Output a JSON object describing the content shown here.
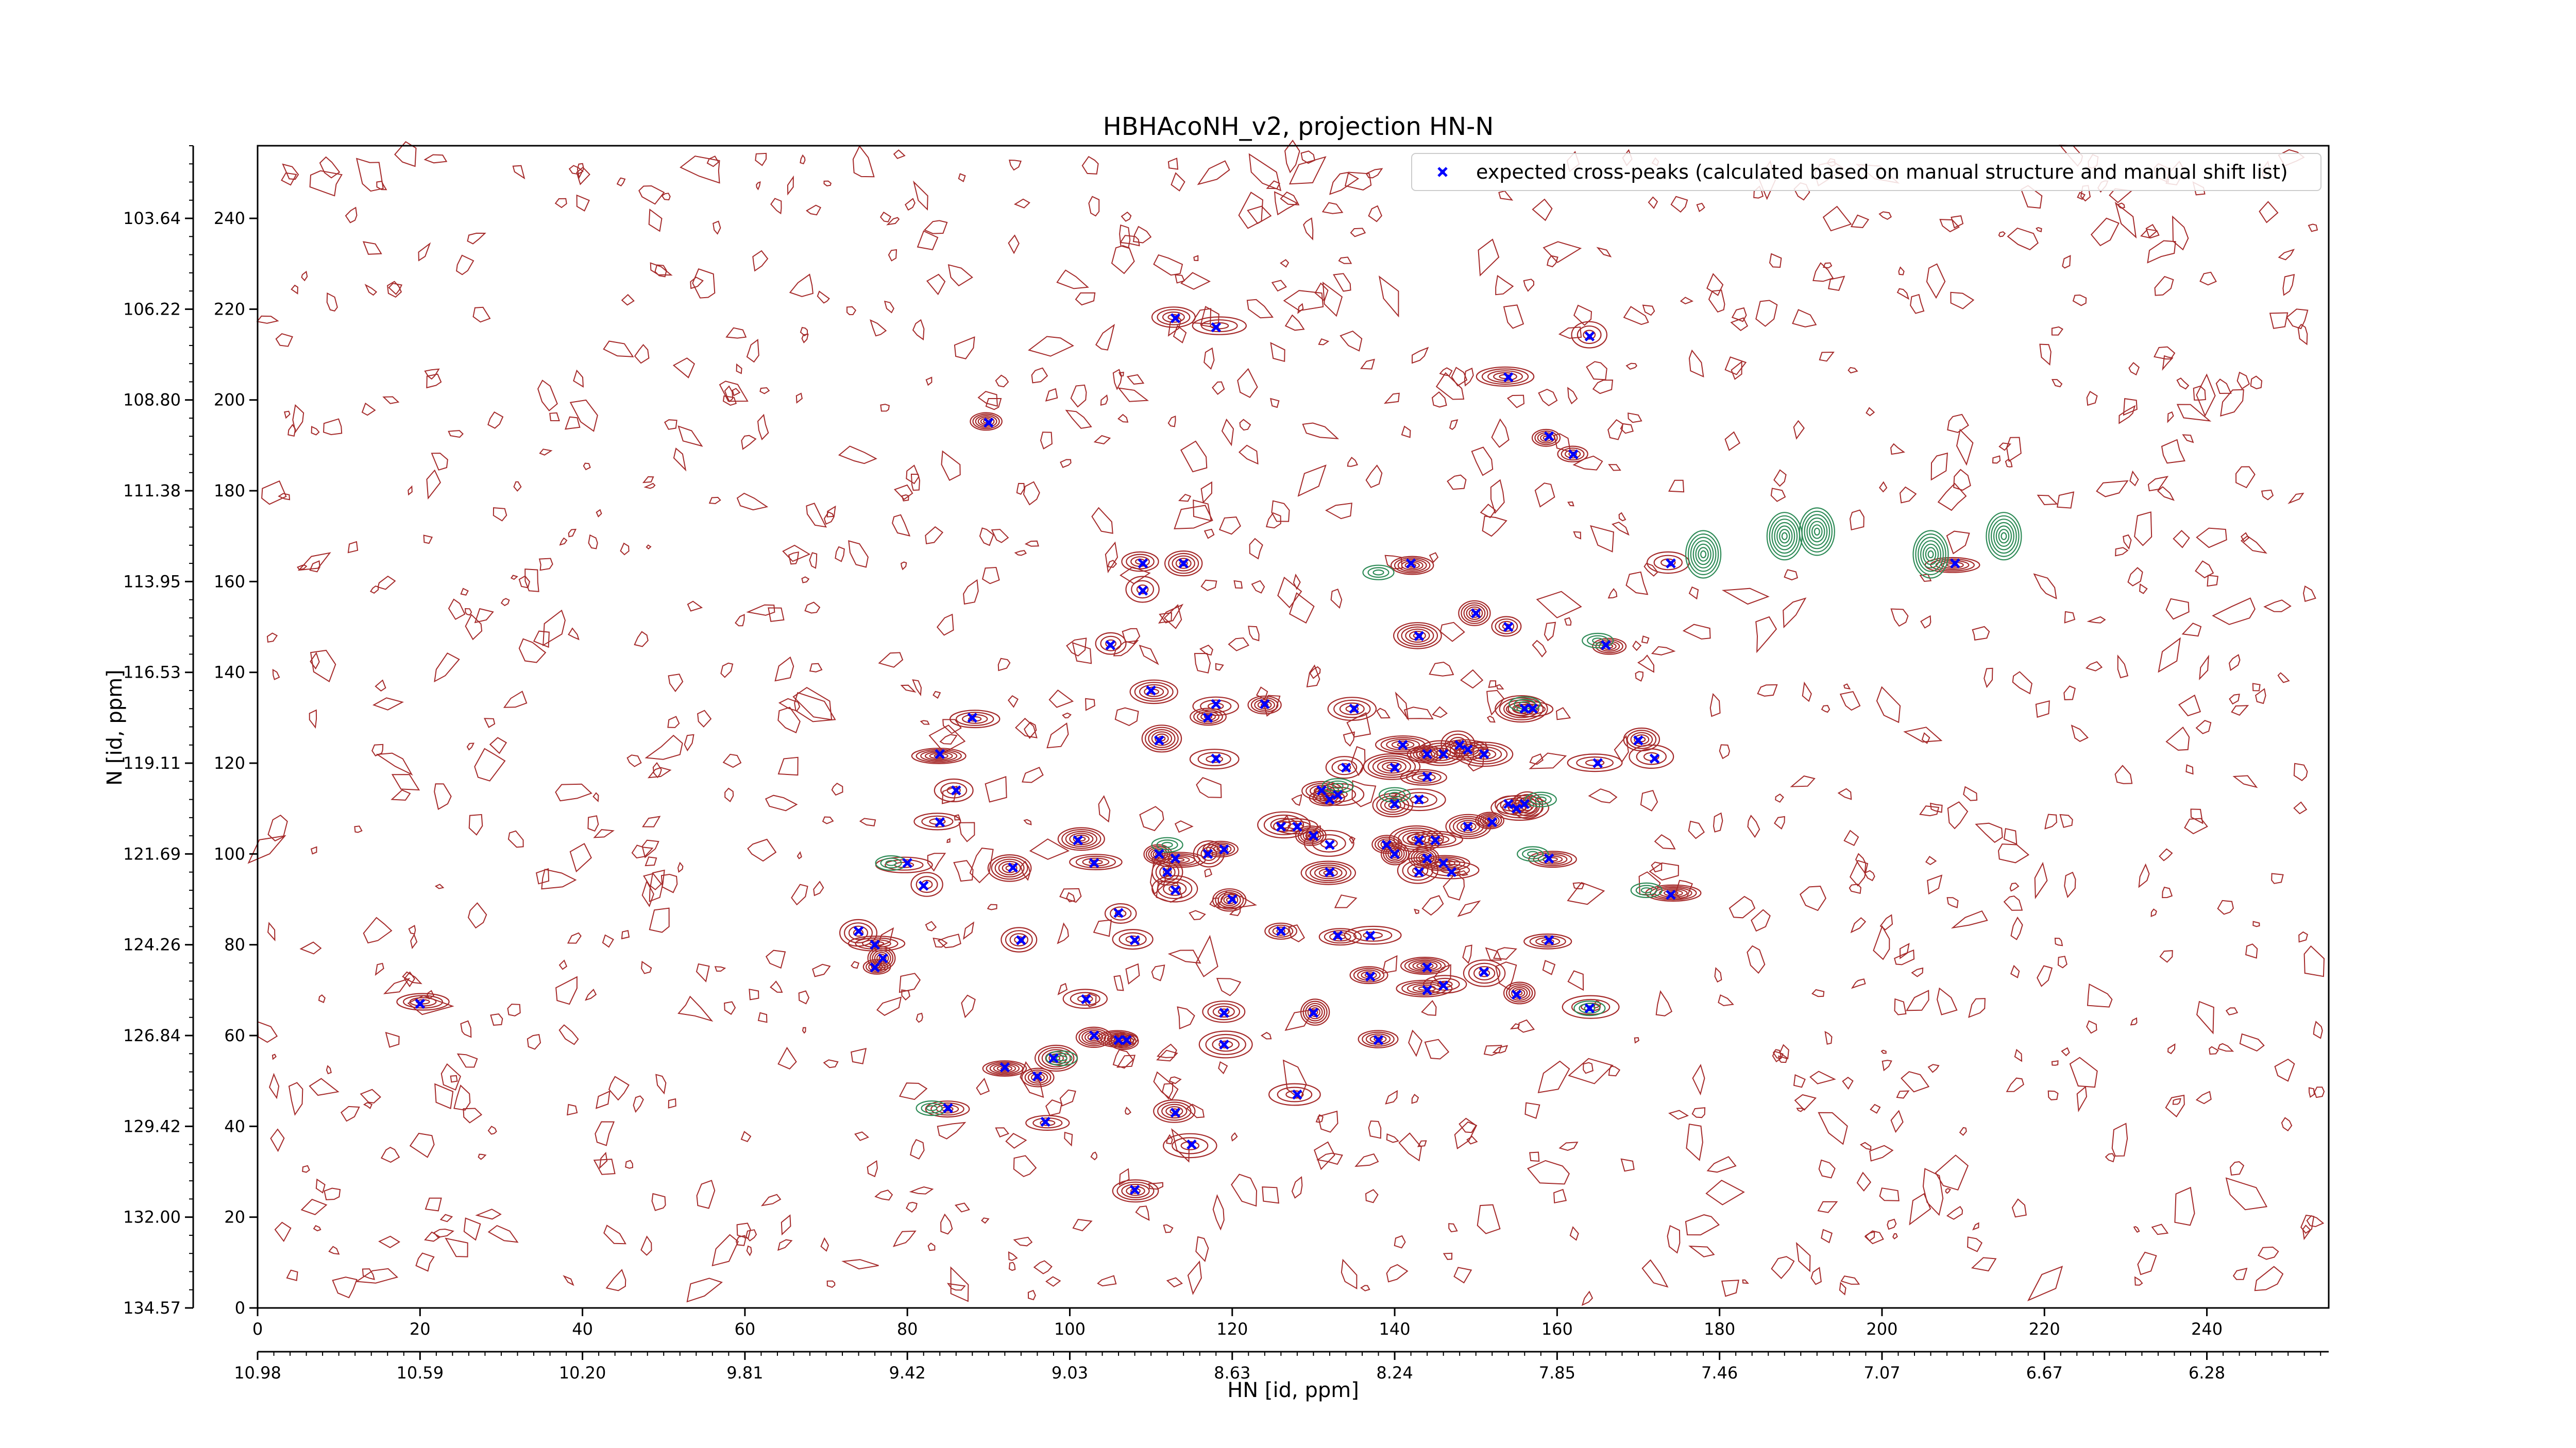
{
  "chart_data": {
    "type": "scatter",
    "title": "HBHAcoNH_v2, projection HN-N",
    "xlabel": "HN [id, ppm]",
    "ylabel": "N [id, ppm]",
    "xlim": [
      0,
      255
    ],
    "ylim": [
      0,
      256
    ],
    "grid": false,
    "legend_position": "top-right",
    "x_ticks_index": [
      0,
      20,
      40,
      60,
      80,
      100,
      120,
      140,
      160,
      180,
      200,
      220,
      240
    ],
    "y_ticks_index": [
      0,
      20,
      40,
      60,
      80,
      100,
      120,
      140,
      160,
      180,
      200,
      220,
      240
    ],
    "x_ppm_ticks": [
      "10.98",
      "10.59",
      "10.20",
      "9.81",
      "9.42",
      "9.03",
      "8.63",
      "8.24",
      "7.85",
      "7.46",
      "7.07",
      "6.67",
      "6.28"
    ],
    "y_ppm_ticks": [
      "103.64",
      "106.22",
      "108.80",
      "111.38",
      "113.95",
      "116.53",
      "119.11",
      "121.69",
      "124.26",
      "126.84",
      "129.42",
      "132.00",
      "134.57"
    ],
    "colors": {
      "noise_contours": "#a52a2a",
      "positive_contours": "#2e8b57",
      "markers": "#0000ff"
    },
    "series": [
      {
        "name": "expected cross-peaks (calculated based on manual structure and manual shift list)",
        "marker": "x",
        "points": [
          [
            113,
            218
          ],
          [
            118,
            216
          ],
          [
            164,
            214
          ],
          [
            154,
            205
          ],
          [
            90,
            195
          ],
          [
            159,
            192
          ],
          [
            162,
            188
          ],
          [
            174,
            164
          ],
          [
            209,
            164
          ],
          [
            109,
            164
          ],
          [
            114,
            164
          ],
          [
            142,
            164
          ],
          [
            109,
            158
          ],
          [
            150,
            153
          ],
          [
            154,
            150
          ],
          [
            166,
            146
          ],
          [
            143,
            148
          ],
          [
            105,
            146
          ],
          [
            110,
            136
          ],
          [
            118,
            133
          ],
          [
            124,
            133
          ],
          [
            135,
            132
          ],
          [
            156,
            132
          ],
          [
            157,
            132
          ],
          [
            88,
            130
          ],
          [
            117,
            130
          ],
          [
            111,
            125
          ],
          [
            165,
            120
          ],
          [
            170,
            125
          ],
          [
            172,
            121
          ],
          [
            84,
            122
          ],
          [
            141,
            124
          ],
          [
            144,
            122
          ],
          [
            146,
            122
          ],
          [
            148,
            124
          ],
          [
            149,
            123
          ],
          [
            151,
            122
          ],
          [
            118,
            121
          ],
          [
            134,
            119
          ],
          [
            140,
            119
          ],
          [
            144,
            117
          ],
          [
            131,
            114
          ],
          [
            133,
            113
          ],
          [
            86,
            114
          ],
          [
            132,
            112
          ],
          [
            140,
            111
          ],
          [
            143,
            112
          ],
          [
            154,
            111
          ],
          [
            156,
            111
          ],
          [
            155,
            110
          ],
          [
            84,
            107
          ],
          [
            126,
            106
          ],
          [
            128,
            106
          ],
          [
            130,
            104
          ],
          [
            132,
            102
          ],
          [
            143,
            103
          ],
          [
            145,
            103
          ],
          [
            149,
            106
          ],
          [
            152,
            107
          ],
          [
            101,
            103
          ],
          [
            111,
            100
          ],
          [
            113,
            99
          ],
          [
            117,
            100
          ],
          [
            119,
            101
          ],
          [
            139,
            102
          ],
          [
            140,
            100
          ],
          [
            144,
            99
          ],
          [
            146,
            98
          ],
          [
            132,
            96
          ],
          [
            80,
            98
          ],
          [
            93,
            97
          ],
          [
            103,
            98
          ],
          [
            143,
            96
          ],
          [
            147,
            96
          ],
          [
            159,
            99
          ],
          [
            112,
            96
          ],
          [
            82,
            93
          ],
          [
            113,
            92
          ],
          [
            174,
            91
          ],
          [
            120,
            90
          ],
          [
            106,
            87
          ],
          [
            133,
            82
          ],
          [
            74,
            83
          ],
          [
            76,
            80
          ],
          [
            77,
            77
          ],
          [
            76,
            75
          ],
          [
            94,
            81
          ],
          [
            108,
            81
          ],
          [
            126,
            83
          ],
          [
            137,
            82
          ],
          [
            159,
            81
          ],
          [
            144,
            75
          ],
          [
            151,
            74
          ],
          [
            137,
            73
          ],
          [
            144,
            70
          ],
          [
            146,
            71
          ],
          [
            155,
            69
          ],
          [
            102,
            68
          ],
          [
            119,
            65
          ],
          [
            130,
            65
          ],
          [
            164,
            66
          ],
          [
            20,
            67
          ],
          [
            103,
            60
          ],
          [
            106,
            59
          ],
          [
            107,
            59
          ],
          [
            119,
            58
          ],
          [
            138,
            59
          ],
          [
            98,
            55
          ],
          [
            92,
            53
          ],
          [
            96,
            51
          ],
          [
            128,
            47
          ],
          [
            85,
            44
          ],
          [
            113,
            43
          ],
          [
            97,
            41
          ],
          [
            115,
            36
          ],
          [
            108,
            26
          ]
        ]
      }
    ]
  }
}
